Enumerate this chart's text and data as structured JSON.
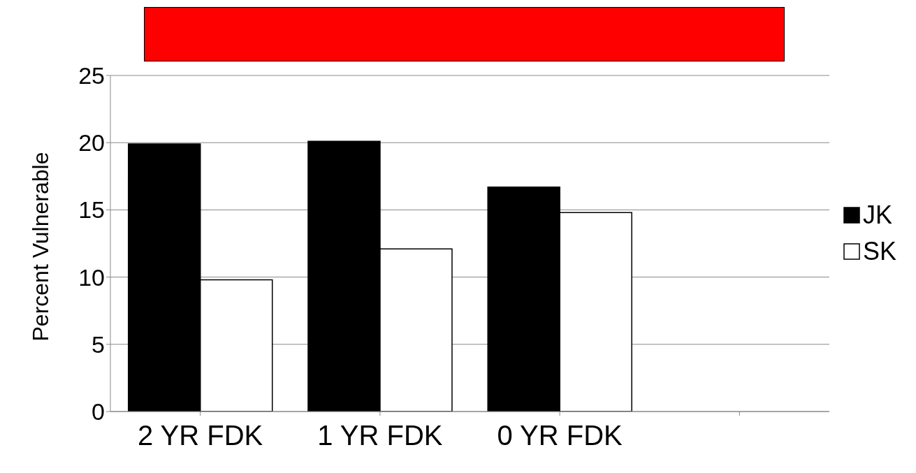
{
  "chart_data": {
    "type": "bar",
    "ylabel": "Percent Vulnerable",
    "categories": [
      "2 YR FDK",
      "1 YR FDK",
      "0 YR FDK",
      null
    ],
    "series": [
      {
        "name": "JK",
        "color": "#000000",
        "values": [
          19.9,
          20.1,
          16.7,
          null
        ]
      },
      {
        "name": "SK",
        "color": "#ffffff",
        "values": [
          9.8,
          12.1,
          14.8,
          null
        ]
      }
    ],
    "ylim": [
      0,
      25
    ],
    "yticks": [
      0,
      5,
      10,
      15,
      20,
      25
    ],
    "grid": "y",
    "legend": "right"
  }
}
